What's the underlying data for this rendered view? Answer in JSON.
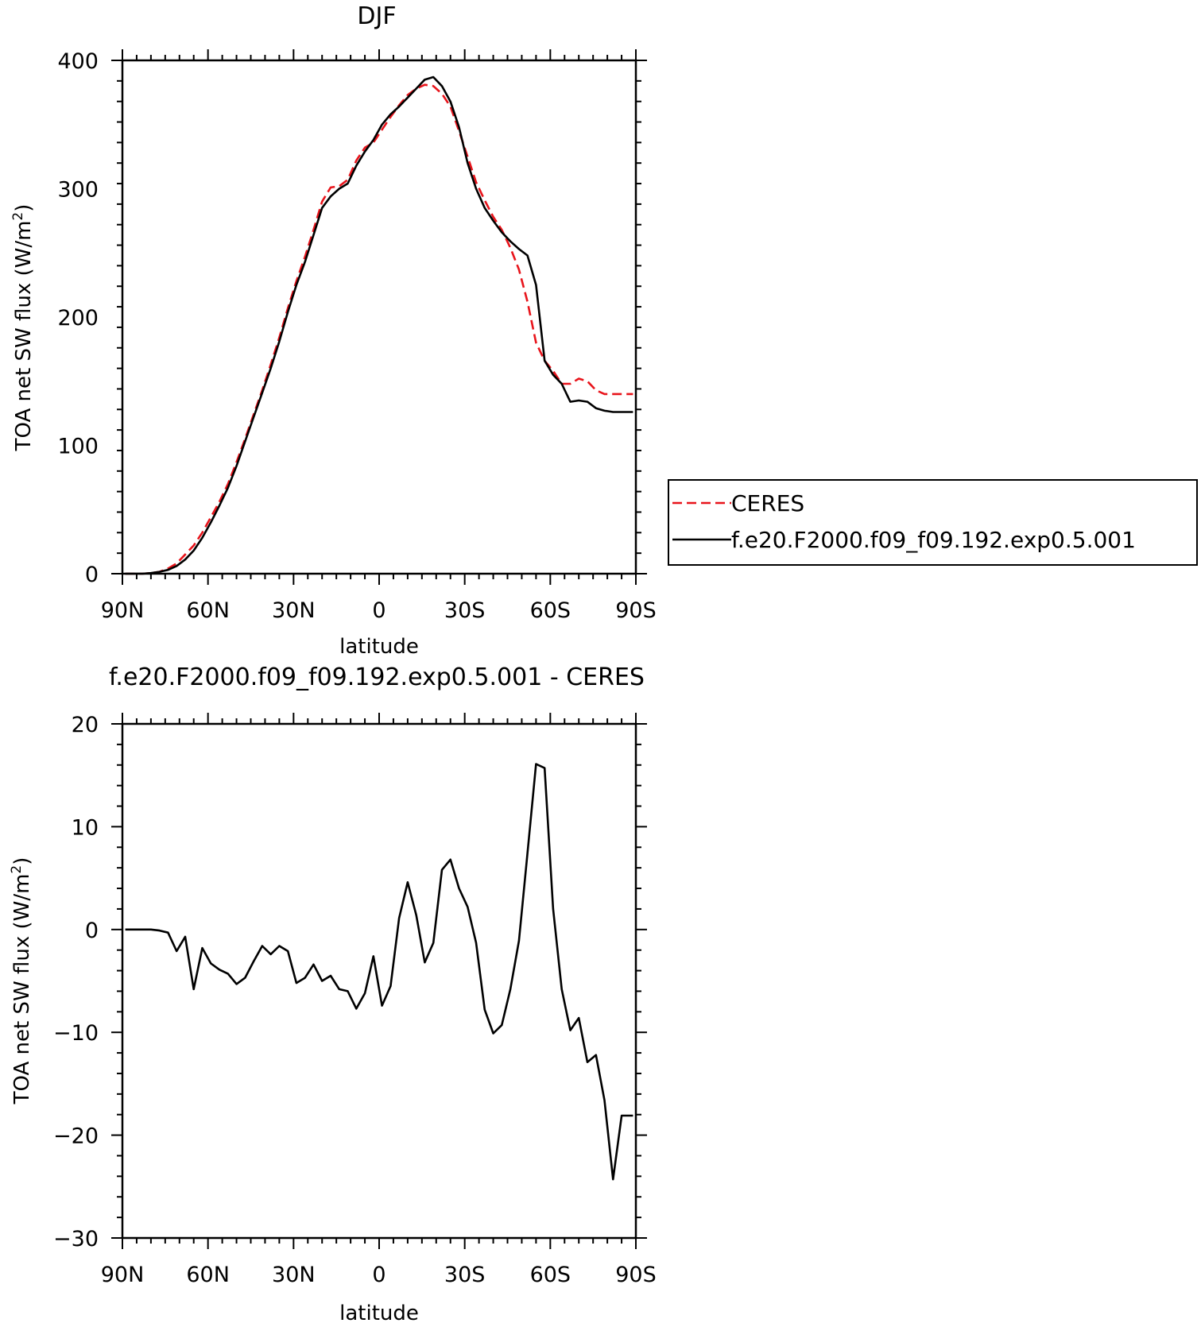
{
  "colors": {
    "obs": "#e8141b",
    "model": "#000000",
    "axes": "#000000"
  },
  "chart_data": [
    {
      "type": "line",
      "title": "DJF",
      "xlabel": "latitude",
      "ylabel": "TOA net SW flux (W/m²)",
      "ylabel_parts": {
        "main": "TOA net SW flux (W/m",
        "sup": "2",
        "end": ")"
      },
      "xlim": [
        90,
        -90
      ],
      "ylim": [
        0,
        400
      ],
      "xticks": [
        90,
        60,
        30,
        0,
        -30,
        -60,
        -90
      ],
      "xtick_labels": [
        "90N",
        "60N",
        "30N",
        "0",
        "30S",
        "60S",
        "90S"
      ],
      "yticks": [
        0,
        100,
        200,
        300,
        400
      ],
      "ytick_labels": [
        "0",
        "100",
        "200",
        "300",
        "400"
      ],
      "grid": false,
      "legend_position": "outside-right",
      "series": [
        {
          "name": "CERES",
          "style": "dashed",
          "color": "#e8141b",
          "x": [
            89,
            86,
            83,
            80,
            77,
            74,
            71,
            68,
            65,
            62,
            59,
            56,
            53,
            50,
            47,
            44,
            41,
            38,
            35,
            32,
            29,
            26,
            23,
            20,
            17,
            14,
            11,
            8,
            5,
            2,
            -1,
            -4,
            -7,
            -10,
            -13,
            -16,
            -19,
            -22,
            -25,
            -28,
            -31,
            -34,
            -37,
            -40,
            -43,
            -46,
            -49,
            -52,
            -55,
            -58,
            -61,
            -64,
            -67,
            -70,
            -73,
            -76,
            -79,
            -82,
            -85,
            -88,
            -89
          ],
          "values": [
            0,
            0,
            0,
            0.5,
            1.5,
            4,
            8,
            15,
            22,
            32,
            44,
            56,
            70,
            87,
            105,
            124,
            143,
            163,
            184,
            207,
            228,
            247,
            268,
            290,
            301,
            302,
            307,
            322,
            332,
            336,
            346,
            356,
            365,
            373,
            378,
            381,
            380,
            374,
            364,
            345,
            325,
            305,
            291,
            278,
            268,
            254,
            237,
            212,
            180,
            166,
            158,
            148,
            148,
            152,
            150,
            143,
            140,
            140,
            140,
            140,
            140
          ]
        },
        {
          "name": "f.e20.F2000.f09_f09.192.exp0.5.001",
          "style": "solid",
          "color": "#000000",
          "x": [
            89,
            86,
            83,
            80,
            77,
            74,
            71,
            68,
            65,
            62,
            59,
            56,
            53,
            50,
            47,
            44,
            41,
            38,
            35,
            32,
            29,
            26,
            23,
            20,
            17,
            14,
            11,
            8,
            5,
            2,
            -1,
            -4,
            -7,
            -10,
            -13,
            -16,
            -19,
            -22,
            -25,
            -28,
            -31,
            -34,
            -37,
            -40,
            -43,
            -46,
            -49,
            -52,
            -55,
            -58,
            -61,
            -64,
            -67,
            -70,
            -73,
            -76,
            -79,
            -82,
            -85,
            -88,
            -89
          ],
          "values": [
            0,
            0,
            0,
            0.5,
            1.5,
            3,
            6,
            11,
            18,
            28,
            40,
            53,
            67,
            84,
            103,
            122,
            141,
            160,
            181,
            204,
            225,
            243,
            264,
            285,
            294,
            300,
            304,
            318,
            329,
            338,
            350,
            358,
            364,
            371,
            378,
            385,
            387,
            380,
            368,
            348,
            320,
            300,
            285,
            275,
            266,
            259,
            253,
            248,
            225,
            166,
            155,
            148,
            134,
            135,
            134,
            129,
            127,
            126,
            126,
            126,
            126
          ]
        }
      ]
    },
    {
      "type": "line",
      "title": "f.e20.F2000.f09_f09.192.exp0.5.001 - CERES",
      "xlabel": "latitude",
      "ylabel": "TOA net SW flux (W/m²)",
      "ylabel_parts": {
        "main": "TOA net SW flux (W/m",
        "sup": "2",
        "end": ")"
      },
      "xlim": [
        90,
        -90
      ],
      "ylim": [
        -30,
        20
      ],
      "xticks": [
        90,
        60,
        30,
        0,
        -30,
        -60,
        -90
      ],
      "xtick_labels": [
        "90N",
        "60N",
        "30N",
        "0",
        "30S",
        "60S",
        "90S"
      ],
      "yticks": [
        -30,
        -20,
        -10,
        0,
        10,
        20
      ],
      "ytick_labels": [
        "−30",
        "−20",
        "−10",
        "0",
        "10",
        "20"
      ],
      "grid": false,
      "series": [
        {
          "style": "solid",
          "color": "#000000",
          "x": [
            89,
            86,
            83,
            80,
            77,
            74,
            71,
            68,
            65,
            62,
            59,
            56,
            53,
            50,
            47,
            44,
            41,
            38,
            35,
            32,
            29,
            26,
            23,
            20,
            17,
            14,
            11,
            8,
            5,
            2,
            -1,
            -4,
            -7,
            -10,
            -13,
            -16,
            -19,
            -22,
            -25,
            -28,
            -31,
            -34,
            -37,
            -40,
            -43,
            -46,
            -49,
            -52,
            -55,
            -58,
            -61,
            -64,
            -67,
            -70,
            -73,
            -76,
            -79,
            -82,
            -85,
            -88,
            -89
          ],
          "values": [
            0,
            0,
            0,
            0,
            -0.1,
            -0.3,
            -2.1,
            -0.7,
            -5.8,
            -1.8,
            -3.3,
            -3.9,
            -4.3,
            -5.3,
            -4.7,
            -3.1,
            -1.6,
            -2.4,
            -1.6,
            -2.1,
            -5.2,
            -4.7,
            -3.4,
            -5.0,
            -4.5,
            -5.8,
            -6.0,
            -7.7,
            -6.2,
            -2.6,
            -7.4,
            -5.5,
            1.1,
            4.6,
            1.4,
            -3.2,
            -1.3,
            5.8,
            6.8,
            4.0,
            2.2,
            -1.3,
            -7.8,
            -10.1,
            -9.3,
            -5.8,
            -1.1,
            7.4,
            16.1,
            15.7,
            2.0,
            -5.8,
            -9.8,
            -8.6,
            -12.9,
            -12.2,
            -16.6,
            -24.3,
            -18.1,
            -18.1,
            -18.1
          ]
        }
      ]
    }
  ]
}
